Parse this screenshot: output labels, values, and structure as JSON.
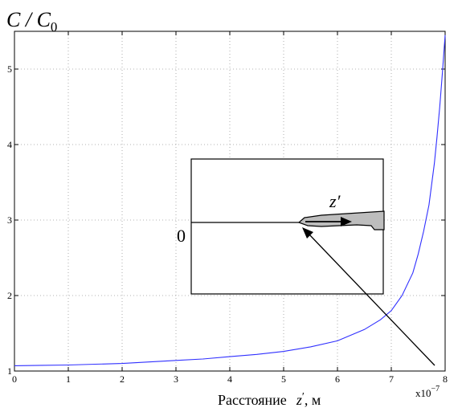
{
  "chart_data": {
    "type": "line",
    "ylabel": "C / C",
    "ylabel_subscript": "0",
    "xlabel": "Расстояние",
    "xlabel_var": "z",
    "xlabel_prime": "′",
    "xlabel_unit": ", м",
    "x_exponent_base": "x10",
    "x_exponent_power": "−7",
    "xlim": [
      0,
      8
    ],
    "ylim": [
      1,
      5.5
    ],
    "xticks": [
      "0",
      "1",
      "2",
      "3",
      "4",
      "5",
      "6",
      "7",
      "8"
    ],
    "yticks": [
      "1",
      "2",
      "3",
      "4",
      "5"
    ],
    "grid": true,
    "grid_style": "dotted",
    "series": [
      {
        "color": "#3030ff",
        "x": [
          0,
          0.5,
          1,
          1.5,
          2,
          2.5,
          3,
          3.5,
          4,
          4.5,
          5,
          5.5,
          6,
          6.5,
          6.8,
          7,
          7.2,
          7.4,
          7.5,
          7.6,
          7.7,
          7.8,
          7.85,
          7.9,
          7.95,
          8
        ],
        "y": [
          1.07,
          1.075,
          1.08,
          1.09,
          1.1,
          1.12,
          1.14,
          1.16,
          1.19,
          1.22,
          1.26,
          1.32,
          1.4,
          1.55,
          1.68,
          1.8,
          2.0,
          2.3,
          2.55,
          2.85,
          3.2,
          3.75,
          4.1,
          4.5,
          4.95,
          5.45
        ]
      }
    ],
    "inset": {
      "origin_label": "0",
      "axis_label": "z",
      "axis_prime": "′"
    }
  }
}
